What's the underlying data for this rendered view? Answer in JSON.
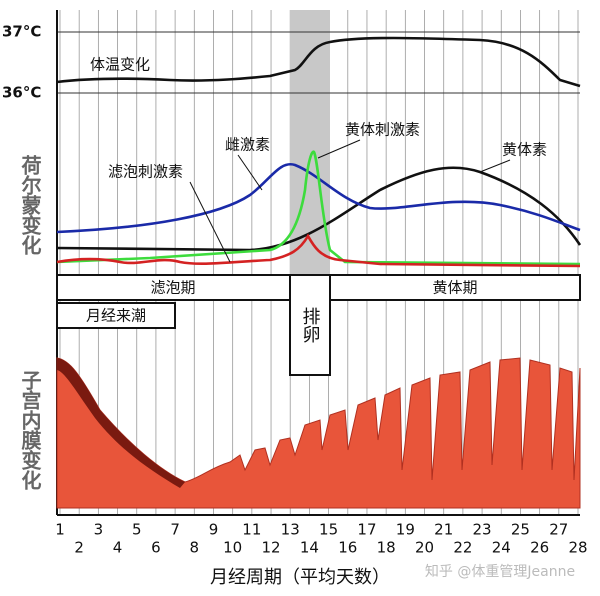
{
  "temperature": {
    "label": "体温变化",
    "high": "37°C",
    "low": "36°C"
  },
  "hormones": {
    "label": "荷尔蒙变化",
    "estradiol": "雌激素",
    "lh": "黄体刺激素",
    "fsh": "滤泡刺激素",
    "progesterone": "黄体素"
  },
  "phases": {
    "follicular": "滤泡期",
    "menstruation": "月经来潮",
    "ovulation": "排卵",
    "luteal": "黄体期"
  },
  "endometrium": {
    "label": "子宫内膜变化"
  },
  "x_axis": {
    "title": "月经周期（平均天数）",
    "days": [
      1,
      2,
      3,
      4,
      5,
      6,
      7,
      8,
      9,
      10,
      11,
      12,
      13,
      14,
      15,
      16,
      17,
      18,
      19,
      20,
      21,
      22,
      23,
      24,
      25,
      26,
      27,
      28
    ]
  },
  "watermark": "知乎 @体重管理Jeanne"
}
